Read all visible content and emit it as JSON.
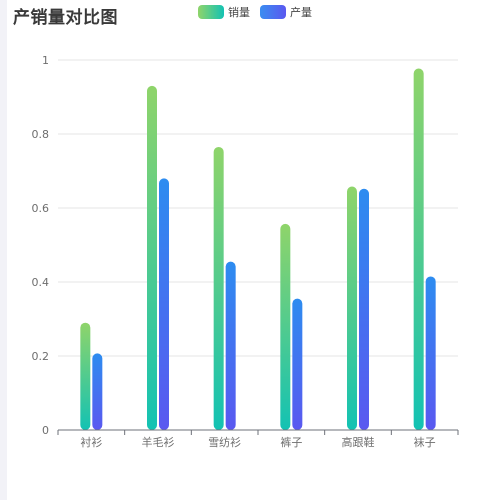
{
  "chart_data": {
    "type": "bar",
    "title": "产销量对比图",
    "categories": [
      "衬衫",
      "羊毛衫",
      "雪纺衫",
      "裤子",
      "高跟鞋",
      "袜子"
    ],
    "series": [
      {
        "name": "销量",
        "values": [
          0.29,
          0.93,
          0.765,
          0.557,
          0.658,
          0.977
        ]
      },
      {
        "name": "产量",
        "values": [
          0.207,
          0.68,
          0.455,
          0.355,
          0.652,
          0.415
        ]
      }
    ],
    "ylim": [
      0,
      1
    ],
    "yticks": [
      "0",
      "0.2",
      "0.4",
      "0.6",
      "0.8",
      "1"
    ],
    "ytick_values": [
      0,
      0.2,
      0.4,
      0.6,
      0.8,
      1
    ],
    "grid": true,
    "legend_position": "top-center",
    "colors": {
      "sales_top": "#8fd46a",
      "sales_bottom": "#13c2b3",
      "prod_top": "#3a8df0",
      "prod_bottom": "#5a58f0",
      "grid": "#e6e6e6",
      "axis": "#6e7079"
    }
  }
}
